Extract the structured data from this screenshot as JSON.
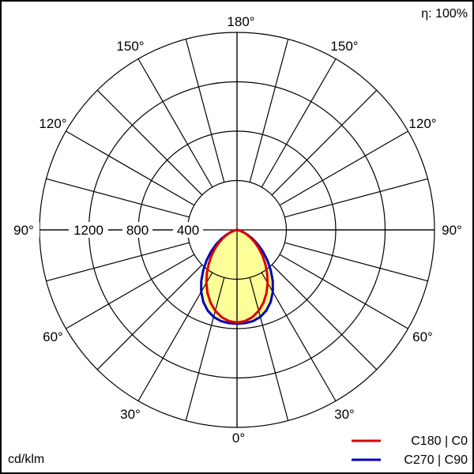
{
  "chart_data": {
    "type": "polar",
    "efficiency_label": "η: 100%",
    "unit_label": "cd/klm",
    "radial_ticks": [
      "400",
      "800",
      "1200"
    ],
    "radial_max": 1600,
    "angle_labels": {
      "top": "180°",
      "upper_left": "150°",
      "upper_right": "150°",
      "mid_upper_left": "120°",
      "mid_upper_right": "120°",
      "left": "90°",
      "right": "90°",
      "mid_lower_left": "60°",
      "mid_lower_right": "60°",
      "lower_left": "30°",
      "lower_right": "30°",
      "bottom": "0°"
    },
    "series": [
      {
        "name": "C180 | C0",
        "color": "#dd0000",
        "angles_deg": [
          0,
          5,
          10,
          15,
          20,
          25,
          30,
          35,
          40,
          45,
          50,
          55,
          60,
          65,
          70,
          75,
          80,
          90
        ],
        "values": [
          750,
          742,
          718,
          679,
          627,
          565,
          496,
          425,
          355,
          290,
          230,
          176,
          128,
          87,
          52,
          25,
          8,
          0
        ]
      },
      {
        "name": "C270 | C90",
        "color": "#0000bb",
        "angles_deg": [
          0,
          5,
          10,
          15,
          20,
          25,
          30,
          35,
          40,
          45,
          50,
          55,
          60,
          65,
          70,
          75,
          80,
          90
        ],
        "values": [
          760,
          758,
          750,
          730,
          695,
          645,
          580,
          505,
          425,
          348,
          275,
          208,
          148,
          97,
          56,
          26,
          8,
          0
        ]
      }
    ]
  }
}
